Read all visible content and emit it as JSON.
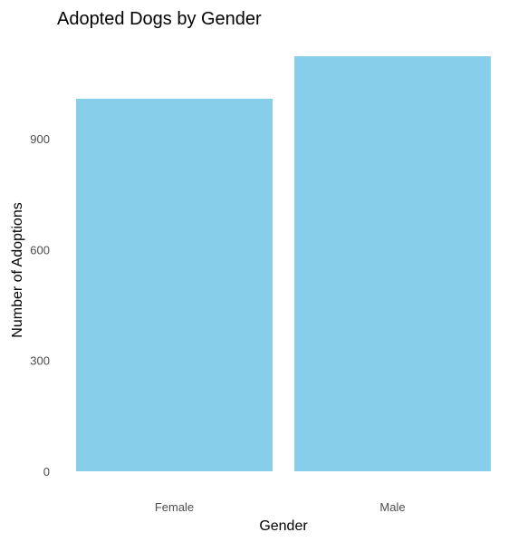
{
  "chart_data": {
    "type": "bar",
    "title": "Adopted Dogs by Gender",
    "xlabel": "Gender",
    "ylabel": "Number of Adoptions",
    "categories": [
      "Female",
      "Male"
    ],
    "values": [
      1008,
      1123
    ],
    "yticks": [
      0,
      300,
      600,
      900
    ],
    "ylim": [
      0,
      1180
    ],
    "grid": false,
    "legend": "none",
    "bar_color": "#87CEEB"
  }
}
